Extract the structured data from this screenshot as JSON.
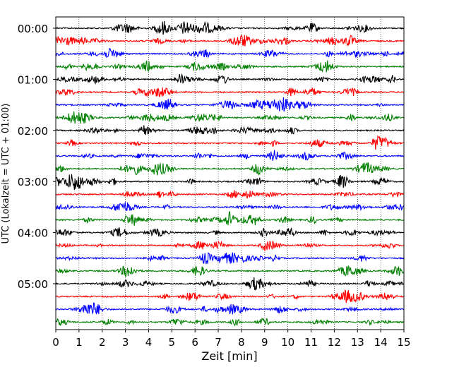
{
  "chart_data": {
    "type": "line",
    "subtype": "helicorder",
    "title": "",
    "xlabel": "Zeit  [min]",
    "ylabel": "UTC (Lokalzeit = UTC + 01:00)",
    "xlim": [
      0,
      15
    ],
    "x_ticks": [
      "0",
      "1",
      "2",
      "3",
      "4",
      "5",
      "6",
      "7",
      "8",
      "9",
      "10",
      "11",
      "12",
      "13",
      "14",
      "15"
    ],
    "y_tick_labels": [
      "00:00",
      "01:00",
      "02:00",
      "03:00",
      "04:00",
      "05:00"
    ],
    "rows_per_hour": 4,
    "row_minutes": 15,
    "trace_colors": [
      "#000000",
      "#ff0000",
      "#0000ff",
      "#008000"
    ],
    "rows": [
      "00:00",
      "00:15",
      "00:30",
      "00:45",
      "01:00",
      "01:15",
      "01:30",
      "01:45",
      "02:00",
      "02:15",
      "02:30",
      "02:45",
      "03:00",
      "03:15",
      "03:30",
      "03:45",
      "04:00",
      "04:15",
      "04:30",
      "04:45",
      "05:00",
      "05:15",
      "05:30",
      "05:45"
    ],
    "grid": {
      "x": true,
      "y": false,
      "style": "dotted"
    },
    "legend": "none"
  }
}
